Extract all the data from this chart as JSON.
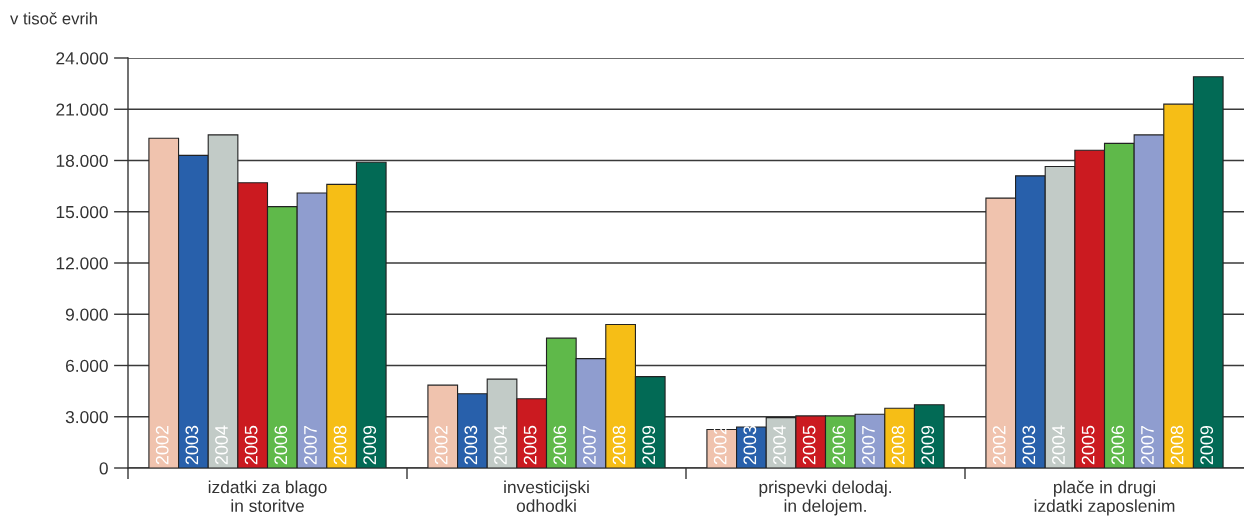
{
  "chart_data": {
    "type": "bar",
    "ylabel": "v tisoč evrih",
    "categories": [
      "izdatki za blago\nin storitve",
      "investicijski\nodhodki",
      "prispevki delodaj.\nin delojem.",
      "plače in drugi\nizdatki zaposlenim"
    ],
    "series": [
      {
        "name": "2002",
        "color": "#f0c3ae",
        "values": [
          19300,
          4850,
          2250,
          15800
        ]
      },
      {
        "name": "2003",
        "color": "#2860ab",
        "values": [
          18300,
          4350,
          2400,
          17100
        ]
      },
      {
        "name": "2004",
        "color": "#c2cbc7",
        "values": [
          19500,
          5200,
          2950,
          17650
        ]
      },
      {
        "name": "2005",
        "color": "#cb1a20",
        "values": [
          16700,
          4050,
          3050,
          18600
        ]
      },
      {
        "name": "2006",
        "color": "#5fb94a",
        "values": [
          15300,
          7600,
          3050,
          19000
        ]
      },
      {
        "name": "2007",
        "color": "#8f9dcf",
        "values": [
          16100,
          6400,
          3150,
          19500
        ]
      },
      {
        "name": "2008",
        "color": "#f6be16",
        "values": [
          16600,
          8400,
          3500,
          21300
        ]
      },
      {
        "name": "2009",
        "color": "#026a55",
        "values": [
          17900,
          5350,
          3700,
          22900
        ]
      }
    ],
    "ylim": [
      0,
      24000
    ],
    "yticks": [
      0,
      {
        "value": 3000,
        "label": "3.000"
      },
      {
        "value": 6000,
        "label": "6.000"
      },
      {
        "value": 9000,
        "label": "9.000"
      },
      {
        "value": 12000,
        "label": "12.000"
      },
      {
        "value": 15000,
        "label": "15.000"
      },
      {
        "value": 18000,
        "label": "18.000"
      },
      {
        "value": 21000,
        "label": "21.000"
      },
      {
        "value": 24000,
        "label": "24.000"
      }
    ],
    "grid": "y"
  }
}
